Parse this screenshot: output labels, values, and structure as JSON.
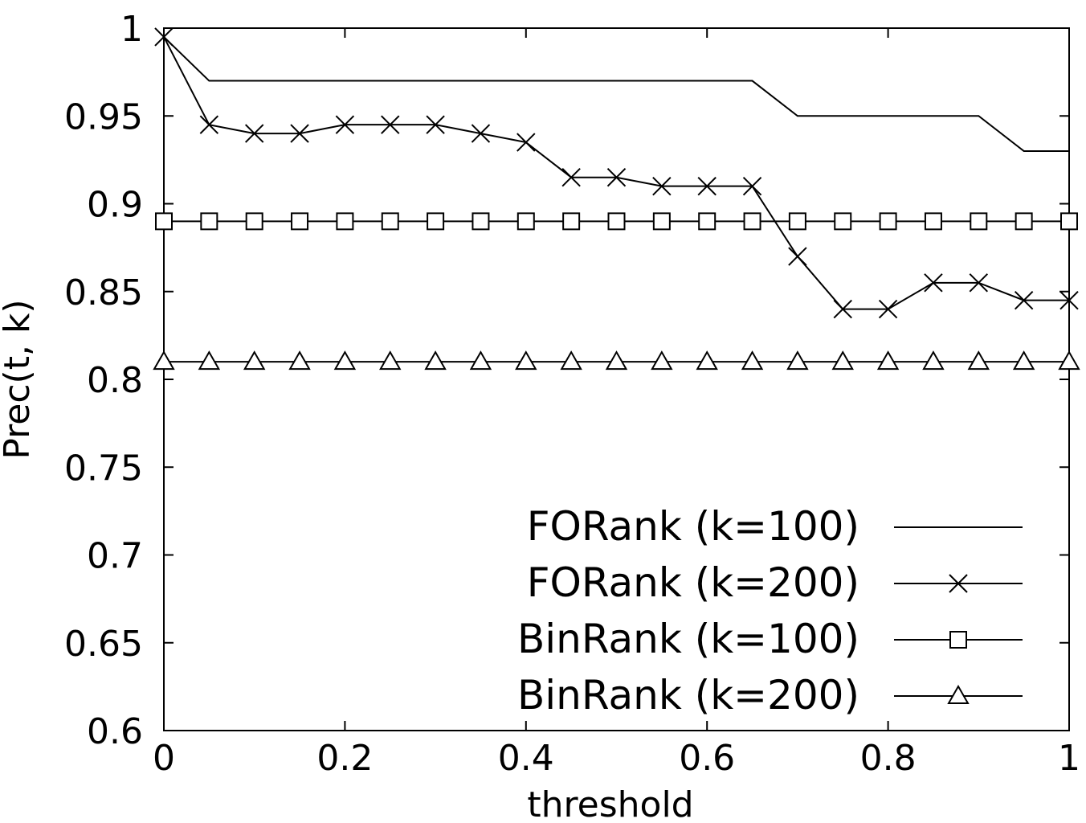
{
  "chart_data": {
    "type": "line",
    "title": "",
    "xlabel": "threshold",
    "ylabel": "Prec(t, k)",
    "xlim": [
      0,
      1
    ],
    "ylim": [
      0.6,
      1
    ],
    "xticks": [
      "0",
      "0.2",
      "0.4",
      "0.6",
      "0.8",
      "1"
    ],
    "yticks": [
      "0.6",
      "0.65",
      "0.7",
      "0.75",
      "0.8",
      "0.85",
      "0.9",
      "0.95",
      "1"
    ],
    "grid": false,
    "legend_position": "bottom-right",
    "x": [
      0,
      0.05,
      0.1,
      0.15,
      0.2,
      0.25,
      0.3,
      0.35,
      0.4,
      0.45,
      0.5,
      0.55,
      0.6,
      0.65,
      0.7,
      0.75,
      0.8,
      0.85,
      0.9,
      0.95,
      1
    ],
    "series": [
      {
        "name": "FORank (k=100)",
        "marker": "none",
        "values": [
          0.995,
          0.97,
          0.97,
          0.97,
          0.97,
          0.97,
          0.97,
          0.97,
          0.97,
          0.97,
          0.97,
          0.97,
          0.97,
          0.97,
          0.95,
          0.95,
          0.95,
          0.95,
          0.95,
          0.93,
          0.93
        ]
      },
      {
        "name": "FORank (k=200)",
        "marker": "x",
        "values": [
          0.995,
          0.945,
          0.94,
          0.94,
          0.945,
          0.945,
          0.945,
          0.94,
          0.935,
          0.915,
          0.915,
          0.91,
          0.91,
          0.91,
          0.87,
          0.84,
          0.84,
          0.855,
          0.855,
          0.845,
          0.845
        ]
      },
      {
        "name": "BinRank (k=100)",
        "marker": "square",
        "values": [
          0.89,
          0.89,
          0.89,
          0.89,
          0.89,
          0.89,
          0.89,
          0.89,
          0.89,
          0.89,
          0.89,
          0.89,
          0.89,
          0.89,
          0.89,
          0.89,
          0.89,
          0.89,
          0.89,
          0.89,
          0.89
        ]
      },
      {
        "name": "BinRank (k=200)",
        "marker": "triangle",
        "values": [
          0.81,
          0.81,
          0.81,
          0.81,
          0.81,
          0.81,
          0.81,
          0.81,
          0.81,
          0.81,
          0.81,
          0.81,
          0.81,
          0.81,
          0.81,
          0.81,
          0.81,
          0.81,
          0.81,
          0.81,
          0.81
        ]
      }
    ]
  }
}
